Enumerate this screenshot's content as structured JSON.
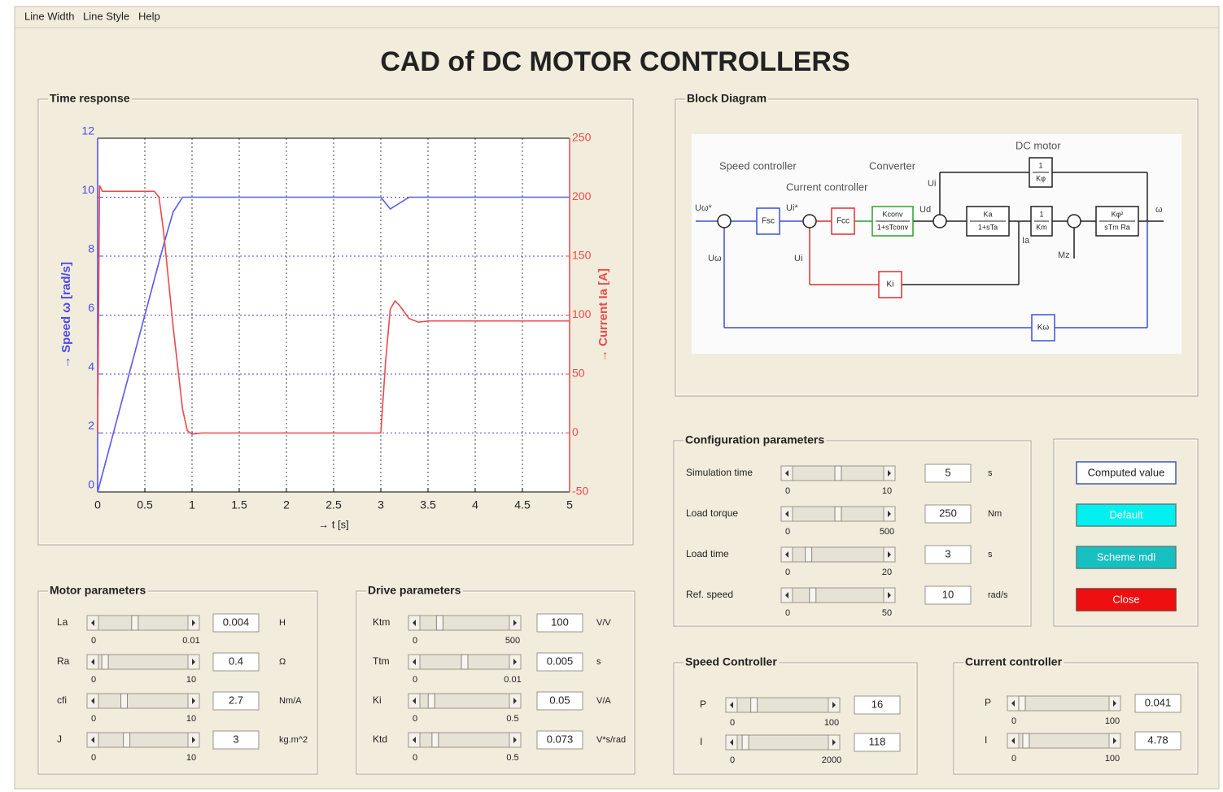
{
  "menu": [
    "Line Width",
    "Line Style",
    "Help"
  ],
  "title": "CAD of DC MOTOR CONTROLLERS",
  "time_response": {
    "panel_title": "Time response",
    "chart_data": {
      "type": "line",
      "xlabel": "→ t [s]",
      "ylabel": "→ Speed ω [rad/s]",
      "y2label": "→ Current Ia [A]",
      "xlim": [
        0,
        5
      ],
      "xticks": [
        0,
        0.5,
        1,
        1.5,
        2,
        2.5,
        3,
        3.5,
        4,
        4.5,
        5
      ],
      "ylim": [
        0,
        12
      ],
      "yticks": [
        0,
        2,
        4,
        6,
        8,
        10,
        12
      ],
      "y2lim": [
        -50,
        250
      ],
      "y2ticks": [
        -50,
        0,
        50,
        100,
        150,
        200,
        250
      ],
      "grid": true,
      "series": [
        {
          "color": "#5a5aef",
          "x": [
            0,
            0.1,
            0.2,
            0.3,
            0.4,
            0.5,
            0.6,
            0.7,
            0.8,
            0.9,
            1.0,
            2.0,
            3.0,
            3.05,
            3.1,
            3.2,
            3.3,
            3.5,
            4,
            5
          ],
          "values": [
            0,
            1.2,
            2.4,
            3.6,
            4.8,
            6.0,
            7.2,
            8.4,
            9.5,
            10,
            10,
            10,
            10,
            9.8,
            9.6,
            9.8,
            10,
            10,
            10,
            10
          ]
        },
        {
          "color": "#f04848",
          "axis": "y2",
          "x": [
            0,
            0.02,
            0.05,
            0.6,
            0.65,
            0.7,
            0.8,
            0.9,
            0.95,
            1.0,
            1.1,
            2.99,
            3.0,
            3.05,
            3.1,
            3.15,
            3.2,
            3.3,
            3.4,
            3.5,
            5
          ],
          "values": [
            0,
            210,
            205,
            205,
            200,
            170,
            90,
            20,
            2,
            -1,
            0,
            0,
            0,
            60,
            105,
            112,
            108,
            97,
            94,
            95,
            95
          ]
        }
      ]
    }
  },
  "block_diagram": {
    "panel_title": "Block Diagram",
    "captions": [
      "Speed controller",
      "Converter",
      "Current controller",
      "DC motor"
    ],
    "blocks": [
      [
        "Fsc"
      ],
      [
        "Fcc"
      ],
      [
        "Kconv",
        "1+sTconv"
      ],
      [
        "Ka",
        "1+sTa"
      ],
      [
        "1",
        "Km"
      ],
      [
        "Kφ²",
        "sTm Ra"
      ],
      [
        "1",
        "Kφ"
      ],
      [
        "Ki"
      ],
      [
        "Kω"
      ]
    ],
    "signals": [
      "Uω*",
      "Uω",
      "Ui*",
      "Ui",
      "Ui",
      "Ud",
      "Ia",
      "Mz",
      "ω"
    ]
  },
  "configuration": {
    "panel_title": "Configuration parameters",
    "rows": [
      {
        "label": "Simulation time",
        "min": 0,
        "max": 10,
        "value": 5,
        "unit": "s"
      },
      {
        "label": "Load torque",
        "min": 0,
        "max": 500,
        "value": 250,
        "unit": "Nm"
      },
      {
        "label": "Load time",
        "min": 0,
        "max": 20,
        "value": 3,
        "unit": "s"
      },
      {
        "label": "Ref. speed",
        "min": 0,
        "max": 50,
        "value": 10,
        "unit": "rad/s"
      }
    ]
  },
  "buttons": [
    "Computed value",
    "Default",
    "Scheme mdl",
    "Close"
  ],
  "motor": {
    "panel_title": "Motor parameters",
    "rows": [
      {
        "label": "La",
        "min": 0,
        "max": 0.01,
        "value": 0.004,
        "unit": "H"
      },
      {
        "label": "Ra",
        "min": 0,
        "max": 10,
        "value": 0.4,
        "unit": "Ω"
      },
      {
        "label": "cfi",
        "min": 0,
        "max": 10,
        "value": 2.7,
        "unit": "Nm/A"
      },
      {
        "label": "J",
        "min": 0,
        "max": 10,
        "value": 3,
        "unit": "kg.m^2"
      }
    ]
  },
  "drive": {
    "panel_title": "Drive parameters",
    "rows": [
      {
        "label": "Ktm",
        "min": 0,
        "max": 500,
        "value": 100,
        "unit": "V/V"
      },
      {
        "label": "Ttm",
        "min": 0,
        "max": 0.01,
        "value": 0.005,
        "unit": "s"
      },
      {
        "label": "Ki",
        "min": 0,
        "max": 0.5,
        "value": 0.05,
        "unit": "V/A"
      },
      {
        "label": "Ktd",
        "min": 0,
        "max": 0.5,
        "value": 0.073,
        "unit": "V*s/rad"
      }
    ]
  },
  "speed_controller": {
    "panel_title": "Speed Controller",
    "rows": [
      {
        "label": "P",
        "min": 0,
        "max": 100,
        "value": 16
      },
      {
        "label": "I",
        "min": 0,
        "max": 2000,
        "value": 118
      }
    ]
  },
  "current_controller": {
    "panel_title": "Current controller",
    "rows": [
      {
        "label": "P",
        "min": 0,
        "max": 100,
        "value": 0.041
      },
      {
        "label": "I",
        "min": 0,
        "max": 100,
        "value": 4.78
      }
    ]
  }
}
